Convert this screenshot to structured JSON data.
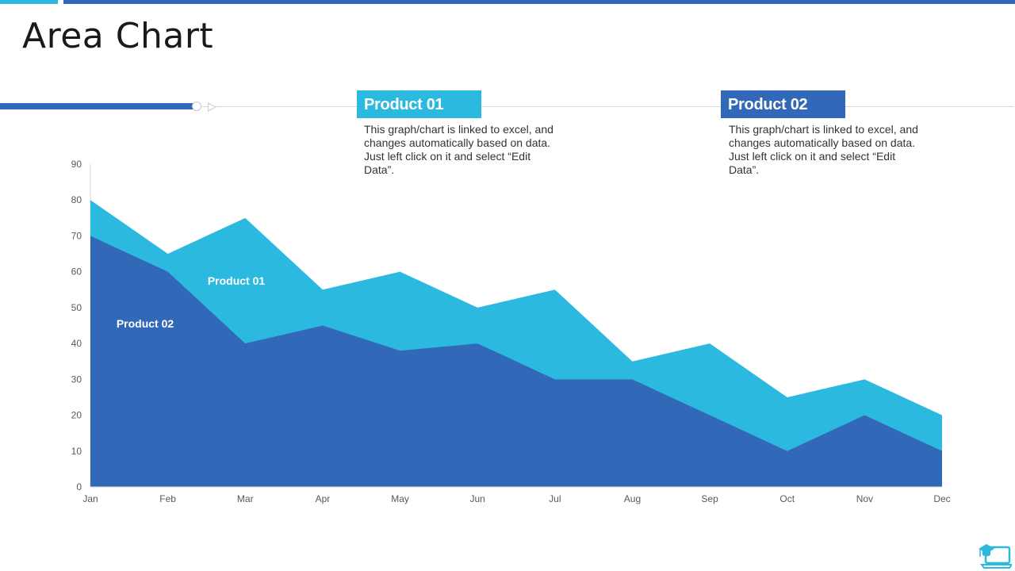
{
  "title": "Area Chart",
  "colors": {
    "accent_light": "#2cb9e0",
    "accent_dark": "#3268b8",
    "gray": "#d9d9d9"
  },
  "legend": [
    {
      "label": "Product 01",
      "description": "This graph/chart is linked to excel, and changes automatically based on data. Just left click on it and select “Edit Data”."
    },
    {
      "label": "Product 02",
      "description": "This graph/chart is linked to excel, and changes automatically based on data. Just left click on it and select “Edit Data”."
    }
  ],
  "chart_data": {
    "type": "area",
    "categories": [
      "Jan",
      "Feb",
      "Mar",
      "Apr",
      "May",
      "Jun",
      "Jul",
      "Aug",
      "Sep",
      "Oct",
      "Nov",
      "Dec"
    ],
    "series": [
      {
        "name": "Product 01",
        "values": [
          80,
          65,
          75,
          55,
          60,
          50,
          55,
          35,
          40,
          25,
          30,
          20
        ],
        "color": "#2cb9e0"
      },
      {
        "name": "Product 02",
        "values": [
          70,
          60,
          40,
          45,
          38,
          40,
          30,
          30,
          20,
          10,
          20,
          10
        ],
        "color": "#3268b8"
      }
    ],
    "yticks": [
      0,
      10,
      20,
      30,
      40,
      50,
      60,
      70,
      80,
      90
    ],
    "ylim": [
      0,
      90
    ],
    "grid": false,
    "annotations": [
      {
        "text": "Product 01",
        "series": "Product 01"
      },
      {
        "text": "Product 02",
        "series": "Product 02"
      }
    ]
  },
  "logo_icon": "graduation-laptop-icon"
}
